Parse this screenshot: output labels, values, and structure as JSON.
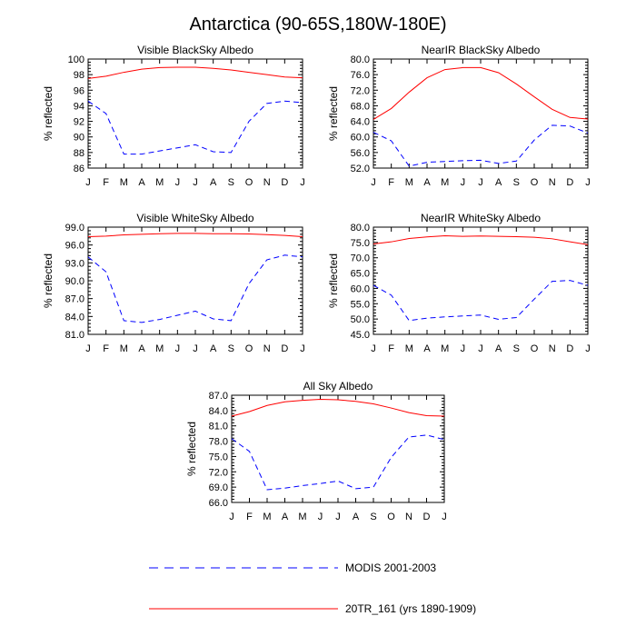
{
  "figure": {
    "title": "Antarctica (90-65S,180W-180E)"
  },
  "colors": {
    "modis": "#0000ff",
    "model": "#ff0000",
    "axis": "#000000"
  },
  "legend": {
    "modis_label": "MODIS 2001-2003",
    "model_label": "20TR_161 (yrs 1890-1909)"
  },
  "chart_data": [
    {
      "type": "line",
      "title": "Visible BlackSky Albedo",
      "ylabel": "% reflected",
      "categories": [
        "J",
        "F",
        "M",
        "A",
        "M",
        "J",
        "J",
        "A",
        "S",
        "O",
        "N",
        "D",
        "J"
      ],
      "ylim": [
        86,
        100
      ],
      "yticks": [
        "86",
        "88",
        "90",
        "92",
        "94",
        "96",
        "98",
        "100"
      ],
      "series": [
        {
          "name": "MODIS 2001-2003",
          "style": "dashed",
          "values": [
            94.6,
            93.0,
            87.8,
            87.8,
            88.2,
            88.6,
            89.0,
            88.1,
            88.0,
            92.0,
            94.3,
            94.6,
            94.4
          ]
        },
        {
          "name": "20TR_161 (yrs 1890-1909)",
          "style": "solid",
          "values": [
            97.5,
            97.8,
            98.3,
            98.7,
            98.9,
            98.95,
            98.95,
            98.8,
            98.6,
            98.3,
            98.0,
            97.7,
            97.6
          ]
        }
      ]
    },
    {
      "type": "line",
      "title": "NearIR BlackSky Albedo",
      "ylabel": "% reflected",
      "categories": [
        "J",
        "F",
        "M",
        "A",
        "M",
        "J",
        "J",
        "A",
        "S",
        "O",
        "N",
        "D",
        "J"
      ],
      "ylim": [
        52,
        80
      ],
      "yticks": [
        "52.0",
        "56.0",
        "60.0",
        "64.0",
        "68.0",
        "72.0",
        "76.0",
        "80.0"
      ],
      "series": [
        {
          "name": "MODIS 2001-2003",
          "style": "dashed",
          "values": [
            61.2,
            59.0,
            52.5,
            53.5,
            53.7,
            53.9,
            54.0,
            53.2,
            53.8,
            59.2,
            63.0,
            62.8,
            61.0
          ]
        },
        {
          "name": "20TR_161 (yrs 1890-1909)",
          "style": "solid",
          "values": [
            64.5,
            67.3,
            71.5,
            75.2,
            77.3,
            77.8,
            77.8,
            76.5,
            73.6,
            70.3,
            67.1,
            65.0,
            64.6
          ]
        }
      ]
    },
    {
      "type": "line",
      "title": "Visible WhiteSky Albedo",
      "ylabel": "% reflected",
      "categories": [
        "J",
        "F",
        "M",
        "A",
        "M",
        "J",
        "J",
        "A",
        "S",
        "O",
        "N",
        "D",
        "J"
      ],
      "ylim": [
        81,
        99
      ],
      "yticks": [
        "81.0",
        "84.0",
        "87.0",
        "90.0",
        "93.0",
        "96.0",
        "99.0"
      ],
      "series": [
        {
          "name": "MODIS 2001-2003",
          "style": "dashed",
          "values": [
            94.0,
            91.5,
            83.3,
            83.0,
            83.5,
            84.2,
            84.9,
            83.6,
            83.3,
            89.5,
            93.5,
            94.3,
            94.0
          ]
        },
        {
          "name": "20TR_161 (yrs 1890-1909)",
          "style": "solid",
          "values": [
            97.4,
            97.5,
            97.7,
            97.8,
            97.9,
            97.95,
            97.95,
            97.9,
            97.9,
            97.85,
            97.75,
            97.6,
            97.4
          ]
        }
      ]
    },
    {
      "type": "line",
      "title": "NearIR WhiteSky Albedo",
      "ylabel": "% reflected",
      "categories": [
        "J",
        "F",
        "M",
        "A",
        "M",
        "J",
        "J",
        "A",
        "S",
        "O",
        "N",
        "D",
        "J"
      ],
      "ylim": [
        45,
        80
      ],
      "yticks": [
        "45.0",
        "50.0",
        "55.0",
        "60.0",
        "65.0",
        "70.0",
        "75.0",
        "80.0"
      ],
      "series": [
        {
          "name": "MODIS 2001-2003",
          "style": "dashed",
          "values": [
            61.0,
            57.8,
            49.5,
            50.3,
            50.7,
            51.0,
            51.3,
            49.9,
            50.5,
            56.5,
            62.3,
            62.6,
            61.0
          ]
        },
        {
          "name": "20TR_161 (yrs 1890-1909)",
          "style": "solid",
          "values": [
            74.5,
            75.2,
            76.3,
            76.8,
            77.2,
            77.0,
            77.1,
            77.0,
            76.9,
            76.7,
            76.2,
            75.2,
            74.3
          ]
        }
      ]
    },
    {
      "type": "line",
      "title": "All Sky Albedo",
      "ylabel": "% reflected",
      "categories": [
        "J",
        "F",
        "M",
        "A",
        "M",
        "J",
        "J",
        "A",
        "S",
        "O",
        "N",
        "D",
        "J"
      ],
      "ylim": [
        66,
        87
      ],
      "yticks": [
        "66.0",
        "69.0",
        "72.0",
        "75.0",
        "78.0",
        "81.0",
        "84.0",
        "87.0"
      ],
      "series": [
        {
          "name": "MODIS 2001-2003",
          "style": "dashed",
          "values": [
            78.5,
            76.0,
            68.5,
            68.8,
            69.3,
            69.7,
            70.2,
            68.7,
            69.0,
            74.8,
            78.8,
            79.2,
            78.3
          ]
        },
        {
          "name": "20TR_161 (yrs 1890-1909)",
          "style": "solid",
          "values": [
            82.9,
            83.8,
            85.0,
            85.7,
            86.0,
            86.2,
            86.1,
            85.8,
            85.3,
            84.5,
            83.6,
            83.0,
            82.9
          ]
        }
      ]
    }
  ]
}
